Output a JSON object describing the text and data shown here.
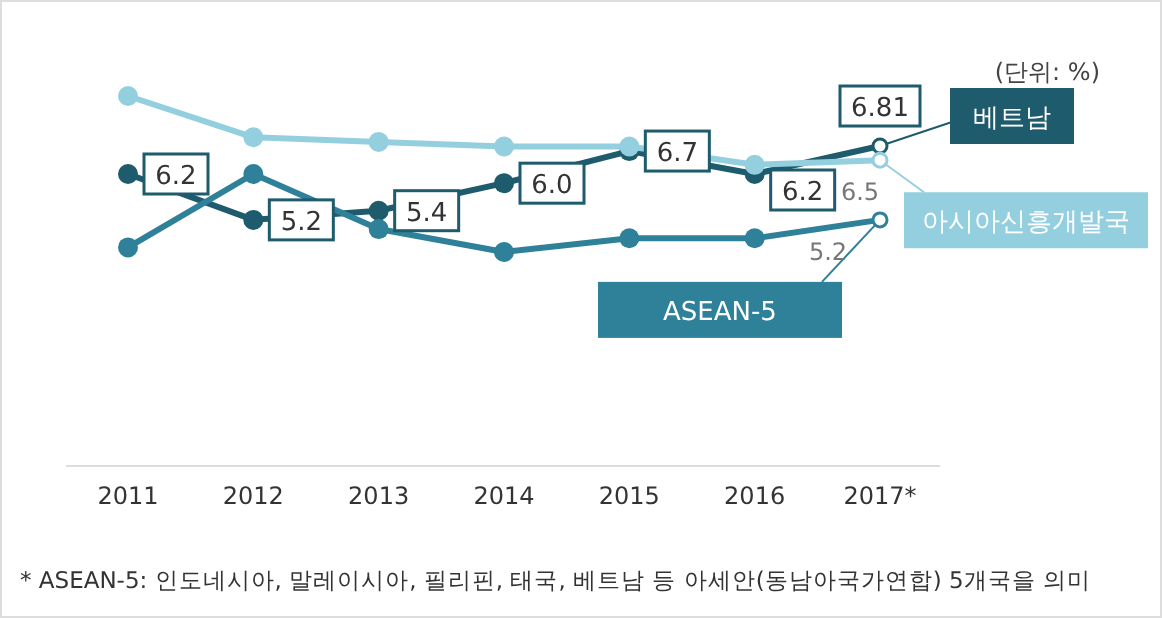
{
  "chart_data": {
    "type": "line",
    "categories": [
      "2011",
      "2012",
      "2013",
      "2014",
      "2015",
      "2016",
      "2017*"
    ],
    "series": [
      {
        "name": "베트남",
        "color": "#1e5b6c",
        "values": [
          6.2,
          5.2,
          5.4,
          6.0,
          6.7,
          6.2,
          6.81
        ],
        "value_labels": [
          "6.2",
          "5.2",
          "5.4",
          "6.0",
          "6.7",
          "6.2",
          "6.81"
        ]
      },
      {
        "name": "아시아신흥개발국",
        "color": "#94cfe0",
        "values": [
          7.9,
          7.0,
          6.9,
          6.8,
          6.8,
          6.4,
          6.5
        ],
        "value_labels": [
          null,
          null,
          null,
          null,
          null,
          null,
          "6.5"
        ]
      },
      {
        "name": "ASEAN-5",
        "color": "#2e8198",
        "values": [
          4.6,
          6.2,
          5.0,
          4.5,
          4.8,
          4.8,
          5.2
        ],
        "value_labels": [
          null,
          null,
          null,
          null,
          null,
          null,
          "5.2"
        ]
      }
    ],
    "tick_labels": "x",
    "grid": false,
    "legend": "right",
    "marker": "circle",
    "line_style": "solid",
    "annotations": [
      "(단위: %)",
      "* ASEAN-5: 인도네시아, 말레이시아, 필리핀, 태국, 베트남 등 아세안(동남아국가연합) 5개국을 의미"
    ]
  }
}
